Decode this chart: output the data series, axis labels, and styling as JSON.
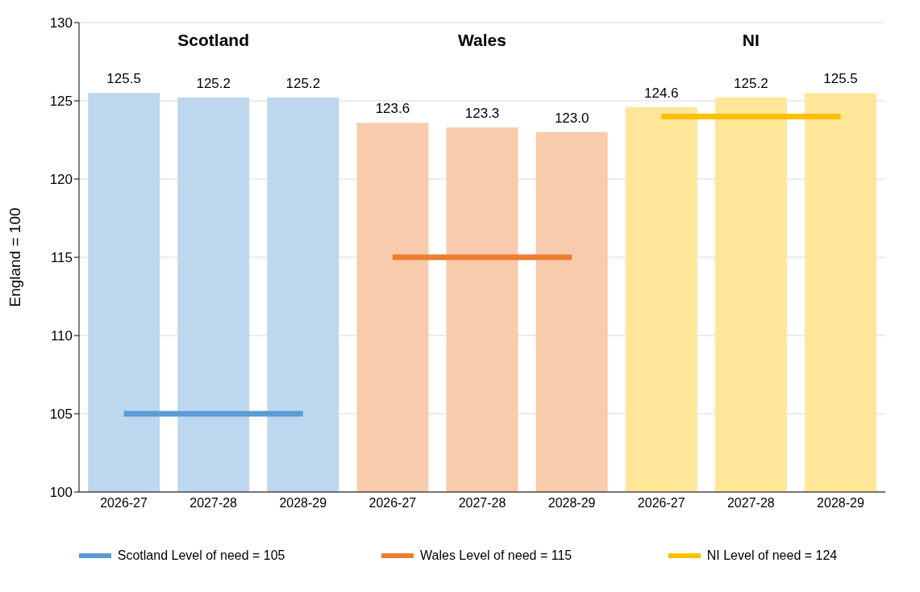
{
  "chart_data": {
    "type": "bar",
    "ylabel": "England = 100",
    "categories": [
      "2026-27",
      "2027-28",
      "2028-29",
      "2026-27",
      "2027-28",
      "2028-29",
      "2026-27",
      "2027-28",
      "2028-29"
    ],
    "series": [
      {
        "colors": [
          "#bdd7ee",
          "#bdd7ee",
          "#bdd7ee",
          "#f8cbad",
          "#f8cbad",
          "#f8cbad",
          "#ffe699",
          "#ffe699",
          "#ffe699"
        ],
        "values": [
          125.5,
          125.2,
          125.2,
          123.6,
          123.3,
          123.0,
          124.6,
          125.2,
          125.5
        ],
        "value_labels": [
          "125.5",
          "125.2",
          "125.2",
          "123.6",
          "123.3",
          "123.0",
          "124.6",
          "125.2",
          "125.5"
        ]
      },
      {
        "type": "line",
        "name": "Scotland Level of need = 105",
        "color": "#5b9bd5",
        "values": [
          105,
          105,
          105,
          null,
          null,
          null,
          null,
          null,
          null
        ]
      },
      {
        "type": "line",
        "name": "Wales Level of need = 115",
        "color": "#ed7d31",
        "values": [
          null,
          null,
          null,
          115,
          115,
          115,
          null,
          null,
          null
        ]
      },
      {
        "type": "line",
        "name": "NI Level of need = 124",
        "color": "#ffc000",
        "values": [
          null,
          null,
          null,
          null,
          null,
          null,
          124,
          124,
          124
        ]
      }
    ],
    "annotations": [
      "Scotland",
      "Wales",
      "NI"
    ],
    "ylim": [
      100,
      130
    ],
    "yticks": [
      100,
      105,
      110,
      115,
      120,
      125,
      130
    ],
    "grid": "y",
    "legend": "bottom",
    "marker": "none"
  }
}
